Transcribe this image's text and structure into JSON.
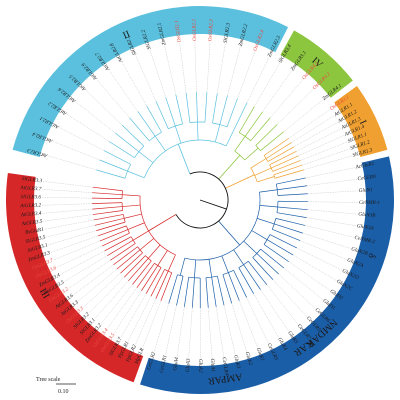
{
  "tree_scale": {
    "title": "Tree scale",
    "value": "0.10"
  },
  "colors": {
    "clade_II": "#5bc0de",
    "clade_IV": "#8cc63f",
    "clade_I": "#f0a030",
    "clade_NMDAR": "#1b5ea8",
    "clade_III": "#d62728",
    "rice_label": "#e8483c",
    "other_label": "#1a1a1a"
  },
  "clades": [
    {
      "id": "II",
      "label": "II",
      "start": -165,
      "end": -63,
      "color": "#5bc0de",
      "text_color": "#1a1a1a"
    },
    {
      "id": "IV",
      "label": "IV",
      "start": -61,
      "end": -38,
      "color": "#8cc63f",
      "text_color": "#1a1a1a"
    },
    {
      "id": "I",
      "label": "I",
      "start": -36,
      "end": -15,
      "color": "#f0a030",
      "text_color": "#1a1a1a"
    },
    {
      "id": "NMDAR",
      "label": "NMDAR",
      "start": -13,
      "end": 108,
      "color": "#1b5ea8",
      "text_color": "#ffffff"
    },
    {
      "id": "III",
      "label": "III",
      "start": 110,
      "end": 188,
      "color": "#d62728",
      "text_color": "#ffffff"
    }
  ],
  "sub_labels": [
    {
      "label": "δ",
      "angle": 18
    },
    {
      "label": "KAR",
      "angle": 55
    },
    {
      "label": "AMPAR",
      "angle": 82
    }
  ],
  "leaves": [
    {
      "name": "AtGLR2.3",
      "clade": "II",
      "rice": false
    },
    {
      "name": "AtGLR2.4",
      "clade": "II",
      "rice": false
    },
    {
      "name": "AtGLR2.1",
      "clade": "II",
      "rice": false
    },
    {
      "name": "AtGLR2.2",
      "clade": "II",
      "rice": false
    },
    {
      "name": "AtGLR2.6",
      "clade": "II",
      "rice": false
    },
    {
      "name": "AtGLR2.5",
      "clade": "II",
      "rice": false
    },
    {
      "name": "AtGLR2.9",
      "clade": "II",
      "rice": false
    },
    {
      "name": "AtGLR2.7",
      "clade": "II",
      "rice": false
    },
    {
      "name": "AtGLR2.8",
      "clade": "II",
      "rice": false
    },
    {
      "name": "SlGLR2.1",
      "clade": "II",
      "rice": false
    },
    {
      "name": "SlGLR2.2",
      "clade": "II",
      "rice": false
    },
    {
      "name": "ZmGLR2.1",
      "clade": "II",
      "rice": false
    },
    {
      "name": "OsGLR2.1",
      "clade": "II",
      "rice": true
    },
    {
      "name": "OsGLR2.2",
      "clade": "II",
      "rice": true
    },
    {
      "name": "OsGLR2.3",
      "clade": "II",
      "rice": true
    },
    {
      "name": "SlGLR2.3",
      "clade": "II",
      "rice": false
    },
    {
      "name": "ZmGLR2.2",
      "clade": "II",
      "rice": false
    },
    {
      "name": "OsGLR2.4",
      "clade": "II",
      "rice": true
    },
    {
      "name": "ZmGLR2.3",
      "clade": "II",
      "rice": false
    },
    {
      "name": "SlGLR3.4",
      "clade": "IV",
      "rice": false
    },
    {
      "name": "ZmGLR3.1",
      "clade": "IV",
      "rice": false
    },
    {
      "name": "OsGLR4.1",
      "clade": "IV",
      "rice": true
    },
    {
      "name": "OsGLR4.2",
      "clade": "IV",
      "rice": true
    },
    {
      "name": "ZmGLR4.1",
      "clade": "IV",
      "rice": false
    },
    {
      "name": "OsGLR3.1",
      "clade": "I",
      "rice": true
    },
    {
      "name": "AtGLR1.1",
      "clade": "I",
      "rice": false
    },
    {
      "name": "AtGLR1.2",
      "clade": "I",
      "rice": false
    },
    {
      "name": "AtGLR1.3",
      "clade": "I",
      "rice": false
    },
    {
      "name": "AtGLR1.4",
      "clade": "I",
      "rice": false
    },
    {
      "name": "SlGLR1.1",
      "clade": "I",
      "rice": false
    },
    {
      "name": "SlGLR1.2",
      "clade": "I",
      "rice": false
    },
    {
      "name": "SlGLR1.3",
      "clade": "I",
      "rice": false
    },
    {
      "name": "AcGluR1",
      "clade": "NMDAR",
      "rice": false
    },
    {
      "name": "CeGLR8",
      "clade": "NMDAR",
      "rice": false
    },
    {
      "name": "GluN1",
      "clade": "NMDAR",
      "rice": false
    },
    {
      "name": "CeNMR-1",
      "clade": "NMDAR",
      "rice": false
    },
    {
      "name": "GluN3B",
      "clade": "NMDAR",
      "rice": false
    },
    {
      "name": "GluN3A",
      "clade": "NMDAR",
      "rice": false
    },
    {
      "name": "CeNMR-2",
      "clade": "NMDAR",
      "rice": false
    },
    {
      "name": "GluN2B",
      "clade": "NMDAR",
      "rice": false
    },
    {
      "name": "GluN2A",
      "clade": "NMDAR",
      "rice": false
    },
    {
      "name": "GluN2D",
      "clade": "NMDAR",
      "rice": false
    },
    {
      "name": "GluN2C",
      "clade": "NMDAR",
      "rice": false
    },
    {
      "name": "GluD2",
      "clade": "NMDAR",
      "rice": false
    },
    {
      "name": "GluD1",
      "clade": "NMDAR",
      "rice": false
    },
    {
      "name": "CeGLR6",
      "clade": "NMDAR",
      "rice": false
    },
    {
      "name": "CeGLR5",
      "clade": "NMDAR",
      "rice": false
    },
    {
      "name": "CeGLR7",
      "clade": "NMDAR",
      "rice": false
    },
    {
      "name": "GluK5",
      "clade": "NMDAR",
      "rice": false
    },
    {
      "name": "GluK4",
      "clade": "NMDAR",
      "rice": false
    },
    {
      "name": "CeGLR3",
      "clade": "NMDAR",
      "rice": false
    },
    {
      "name": "GluK1",
      "clade": "NMDAR",
      "rice": false
    },
    {
      "name": "GluK2",
      "clade": "NMDAR",
      "rice": false
    },
    {
      "name": "GluK3",
      "clade": "NMDAR",
      "rice": false
    },
    {
      "name": "CeGLR4",
      "clade": "NMDAR",
      "rice": false
    },
    {
      "name": "GluA1",
      "clade": "NMDAR",
      "rice": false
    },
    {
      "name": "GluA2",
      "clade": "NMDAR",
      "rice": false
    },
    {
      "name": "GluA3",
      "clade": "NMDAR",
      "rice": false
    },
    {
      "name": "GluA4",
      "clade": "NMDAR",
      "rice": false
    },
    {
      "name": "CeGLR1",
      "clade": "NMDAR",
      "rice": false
    },
    {
      "name": "CeGLR2",
      "clade": "NMDAR",
      "rice": false
    },
    {
      "name": "MpGLR",
      "clade": "III",
      "rice": false
    },
    {
      "name": "PpGLR2",
      "clade": "III",
      "rice": false
    },
    {
      "name": "PpGLR1",
      "clade": "III",
      "rice": false
    },
    {
      "name": "SlGLR3.7",
      "clade": "III",
      "rice": false
    },
    {
      "name": "OsGLR3.5",
      "clade": "III",
      "rice": true
    },
    {
      "name": "OsGLR3.4",
      "clade": "III",
      "rice": true
    },
    {
      "name": "ZmGLR3.2",
      "clade": "III",
      "rice": false
    },
    {
      "name": "SlGLR3.1",
      "clade": "III",
      "rice": false
    },
    {
      "name": "SlGLR3.2",
      "clade": "III",
      "rice": false
    },
    {
      "name": "OsGLR3.3",
      "clade": "III",
      "rice": true
    },
    {
      "name": "AtGLR3.3",
      "clade": "III",
      "rice": false
    },
    {
      "name": "AtGLR3.6",
      "clade": "III",
      "rice": false
    },
    {
      "name": "OsGLR3.2",
      "clade": "III",
      "rice": true
    },
    {
      "name": "ZmGLR3.5",
      "clade": "III",
      "rice": false
    },
    {
      "name": "ZmGLR3.4",
      "clade": "III",
      "rice": false
    },
    {
      "name": "OsGLR3.6",
      "clade": "III",
      "rice": true
    },
    {
      "name": "OsGLR3.7",
      "clade": "III",
      "rice": true
    },
    {
      "name": "ZmGLR3.3",
      "clade": "III",
      "rice": false
    },
    {
      "name": "AtGLR3.1",
      "clade": "III",
      "rice": false
    },
    {
      "name": "SlGLR3.5",
      "clade": "III",
      "rice": false
    },
    {
      "name": "BsGluR1",
      "clade": "III",
      "rice": false
    },
    {
      "name": "AtGLR3.5",
      "clade": "III",
      "rice": false
    },
    {
      "name": "AtGLR3.4",
      "clade": "III",
      "rice": false
    },
    {
      "name": "AtGLR3.2",
      "clade": "III",
      "rice": false
    },
    {
      "name": "SlGLR3.6",
      "clade": "III",
      "rice": false
    },
    {
      "name": "AtGLR3.7",
      "clade": "III",
      "rice": false
    },
    {
      "name": "SlGLR3.3",
      "clade": "III",
      "rice": false
    }
  ]
}
